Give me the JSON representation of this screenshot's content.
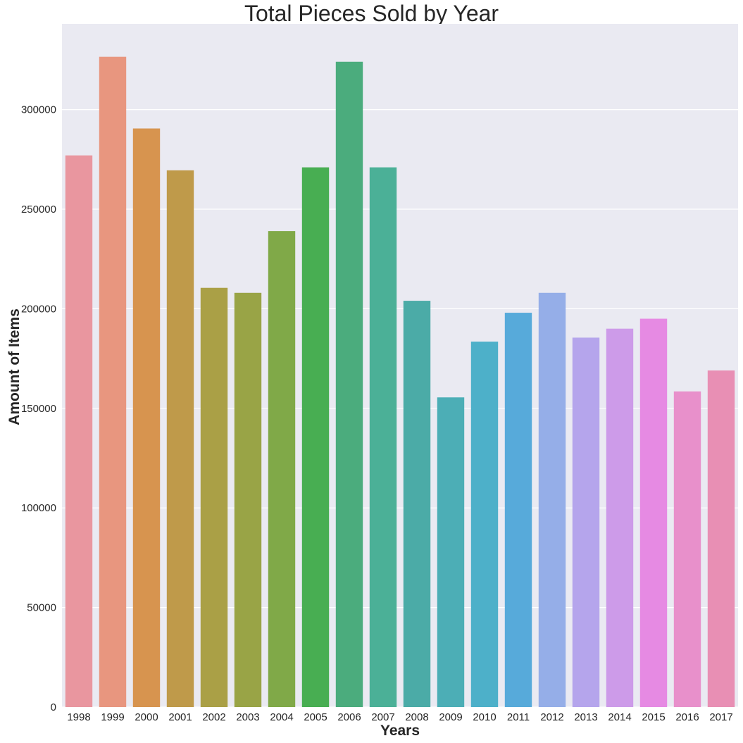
{
  "chart_data": {
    "type": "bar",
    "title": "Total Pieces Sold by Year",
    "xlabel": "Years",
    "ylabel": "Amount of Items",
    "categories": [
      "1998",
      "1999",
      "2000",
      "2001",
      "2002",
      "2003",
      "2004",
      "2005",
      "2006",
      "2007",
      "2008",
      "2009",
      "2010",
      "2011",
      "2012",
      "2013",
      "2014",
      "2015",
      "2016",
      "2017"
    ],
    "values": [
      277000,
      326500,
      290500,
      269500,
      210500,
      208000,
      239000,
      271000,
      324000,
      271000,
      204000,
      155500,
      183500,
      198000,
      208000,
      185500,
      190000,
      195000,
      158500,
      169000
    ],
    "colors": [
      "#e9969f",
      "#e8967f",
      "#d7944f",
      "#bf9a4a",
      "#aaa046",
      "#99a446",
      "#80a948",
      "#48ae52",
      "#4bac7d",
      "#4bb097",
      "#4baba7",
      "#4caeb6",
      "#4db0c9",
      "#57aada",
      "#95aee8",
      "#b5a5ec",
      "#cd9be9",
      "#e68ae3",
      "#e890cb",
      "#e88fb4"
    ],
    "ylim": [
      0,
      343000
    ],
    "yticks": [
      0,
      50000,
      100000,
      150000,
      200000,
      250000,
      300000
    ],
    "ytick_labels": [
      "0",
      "50000",
      "100000",
      "150000",
      "200000",
      "250000",
      "300000"
    ],
    "grid": true,
    "background": "#eaeaf2"
  }
}
